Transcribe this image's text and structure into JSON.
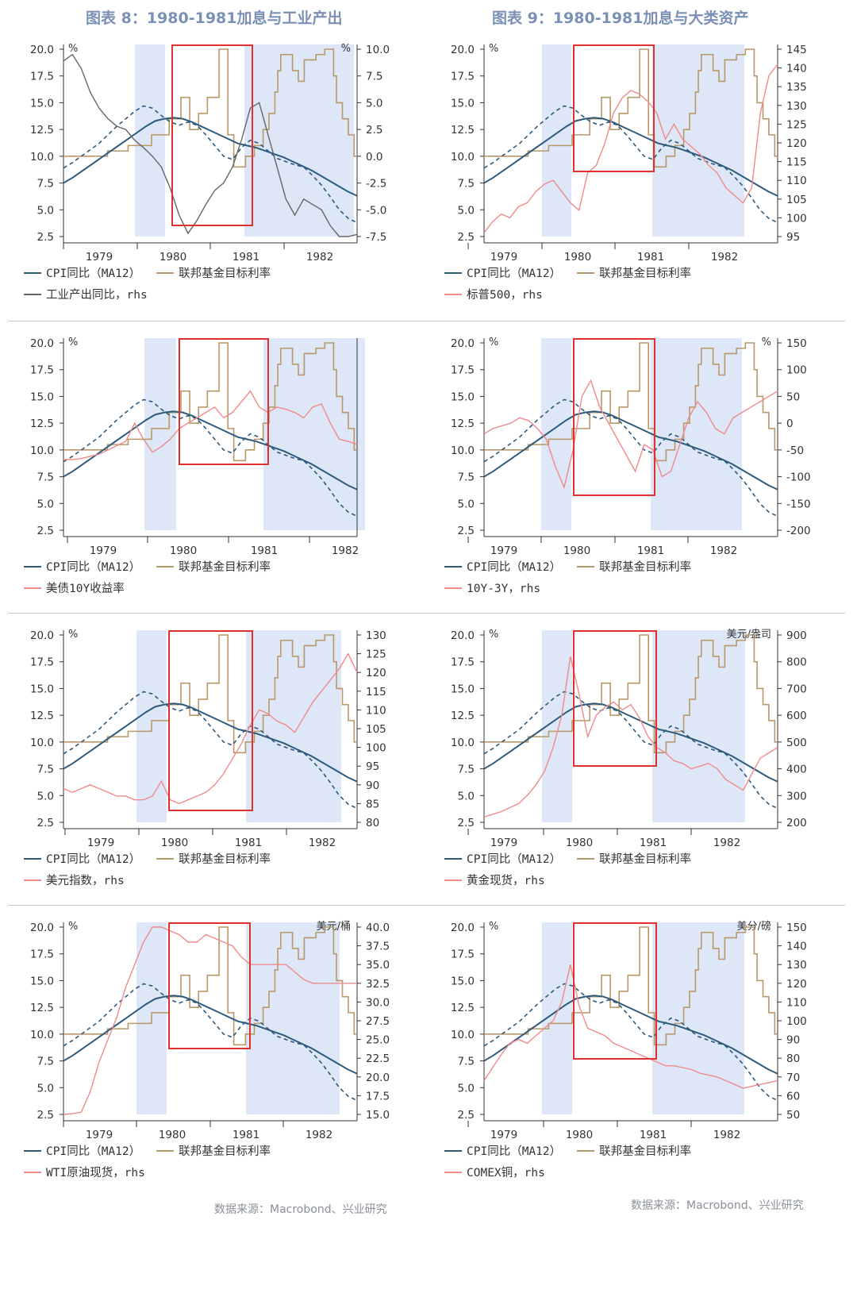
{
  "figures": {
    "left_title": "图表 8：1980-1981加息与工业产出",
    "right_title": "图表 9：1980-1981加息与大类资产",
    "source_left": "数据来源：Macrobond、兴业研究",
    "source_right": "数据来源：Macrobond、兴业研究"
  },
  "legend": {
    "cpi": "CPI同比（MA12）",
    "fed": "联邦基金目标利率"
  },
  "colors": {
    "cpi": "#2e5a7c",
    "fed": "#b89868",
    "rhs_gray": "#666666",
    "rhs_red": "#f08a8a",
    "shade": "#dde7f7",
    "box": "#e03030"
  },
  "chart_data": [
    {
      "id": "p1",
      "type": "line",
      "title": "图表 8：1980-1981加息与工业产出",
      "lhs_unit": "%",
      "rhs_unit": "%",
      "lhs_ticks": [
        "20.0",
        "17.5",
        "15.0",
        "12.5",
        "10.0",
        "7.5",
        "5.0",
        "2.5"
      ],
      "rhs_ticks": [
        "10.0",
        "7.5",
        "5.0",
        "2.5",
        "0.0",
        "-2.5",
        "-5.0",
        "-7.5"
      ],
      "x_ticks": [
        "1979",
        "1980",
        "1981",
        "1982"
      ],
      "rhs_series_name": "工业产出同比，rhs",
      "rhs_color": "gray",
      "rhs_values": [
        8.9,
        9.5,
        8.2,
        6.0,
        4.5,
        3.5,
        2.8,
        2.5,
        1.5,
        0.8,
        0.0,
        -1.0,
        -3.0,
        -5.5,
        -7.2,
        -6.0,
        -4.5,
        -3.2,
        -2.5,
        -1.0,
        1.5,
        4.5,
        5.0,
        2.0,
        -1.0,
        -4.0,
        -5.5,
        -4.0,
        -4.5,
        -5.0,
        -6.5,
        -7.5,
        -7.5,
        -7.3
      ]
    },
    {
      "id": "p2",
      "type": "line",
      "title": "图表 9：1980-1981加息与大类资产",
      "lhs_unit": "%",
      "rhs_unit": "",
      "lhs_ticks": [
        "20.0",
        "17.5",
        "15.0",
        "12.5",
        "10.0",
        "7.5",
        "5.0",
        "2.5"
      ],
      "rhs_ticks": [
        "145",
        "140",
        "135",
        "130",
        "125",
        "120",
        "115",
        "110",
        "105",
        "100",
        "95"
      ],
      "x_ticks": [
        "1979",
        "1980",
        "1981",
        "1982"
      ],
      "rhs_series_name": "标普500，rhs",
      "rhs_color": "red",
      "rhs_values": [
        96,
        99,
        101,
        100,
        103,
        104,
        107,
        109,
        110,
        107,
        104,
        102,
        112,
        114,
        120,
        128,
        132,
        134,
        133,
        131,
        128,
        121,
        125,
        121,
        119,
        117,
        114,
        112,
        108,
        106,
        104,
        108,
        128,
        138,
        141
      ]
    },
    {
      "id": "p3",
      "type": "line",
      "lhs_unit": "%",
      "rhs_unit": "",
      "lhs_ticks": [
        "20.0",
        "17.5",
        "15.0",
        "12.5",
        "10.0",
        "7.5",
        "5.0",
        "2.5"
      ],
      "rhs_ticks": [],
      "x_ticks": [
        "1979",
        "1980",
        "1981",
        "1982"
      ],
      "rhs_series_name": "美债10Y收益率",
      "rhs_color": "red",
      "rhs_values": [
        9.1,
        9.1,
        9.2,
        9.4,
        9.6,
        10.0,
        10.4,
        10.8,
        12.5,
        11.0,
        9.8,
        10.3,
        11.0,
        12.0,
        12.5,
        13.0,
        13.5,
        14.0,
        13.0,
        13.5,
        14.5,
        15.5,
        14.0,
        13.5,
        14.0,
        13.8,
        13.5,
        13.0,
        14.0,
        14.3,
        12.5,
        11.0,
        10.8,
        10.5
      ]
    },
    {
      "id": "p4",
      "type": "line",
      "lhs_unit": "%",
      "rhs_unit": "%",
      "lhs_ticks": [
        "20.0",
        "17.5",
        "15.0",
        "12.5",
        "10.0",
        "7.5",
        "5.0",
        "2.5"
      ],
      "rhs_ticks": [
        "150",
        "100",
        "50",
        "0",
        "-50",
        "-100",
        "-150",
        "-200"
      ],
      "x_ticks": [
        "1979",
        "1980",
        "1981",
        "1982"
      ],
      "rhs_series_name": "10Y-3Y，rhs",
      "rhs_color": "red",
      "rhs_values": [
        -20,
        -10,
        -5,
        0,
        10,
        5,
        -10,
        -30,
        -80,
        -120,
        -50,
        50,
        80,
        30,
        0,
        -30,
        -60,
        -90,
        -40,
        -50,
        -100,
        -90,
        -40,
        10,
        40,
        20,
        -10,
        -20,
        10,
        20,
        30,
        40,
        50,
        60
      ]
    },
    {
      "id": "p5",
      "type": "line",
      "lhs_unit": "%",
      "rhs_unit": "",
      "lhs_ticks": [
        "20.0",
        "17.5",
        "15.0",
        "12.5",
        "10.0",
        "7.5",
        "5.0",
        "2.5"
      ],
      "rhs_ticks": [
        "130",
        "125",
        "120",
        "115",
        "110",
        "105",
        "100",
        "95",
        "90",
        "85",
        "80"
      ],
      "x_ticks": [
        "1979",
        "1980",
        "1981",
        "1982"
      ],
      "rhs_series_name": "美元指数，rhs",
      "rhs_color": "red",
      "rhs_values": [
        89,
        88,
        89,
        90,
        89,
        88,
        87,
        87,
        86,
        86,
        87,
        91,
        86,
        85,
        86,
        87,
        88,
        90,
        93,
        97,
        101,
        106,
        110,
        109,
        107,
        106,
        104,
        108,
        112,
        115,
        118,
        121,
        125,
        120
      ]
    },
    {
      "id": "p6",
      "type": "line",
      "lhs_unit": "%",
      "rhs_unit": "美元/盎司",
      "lhs_ticks": [
        "20.0",
        "17.5",
        "15.0",
        "12.5",
        "10.0",
        "7.5",
        "5.0",
        "2.5"
      ],
      "rhs_ticks": [
        "900",
        "800",
        "700",
        "600",
        "500",
        "400",
        "300",
        "200"
      ],
      "x_ticks": [
        "1979",
        "1980",
        "1981",
        "1982"
      ],
      "rhs_series_name": "黄金现货，rhs",
      "rhs_color": "red",
      "rhs_values": [
        220,
        230,
        240,
        255,
        270,
        300,
        340,
        390,
        480,
        600,
        820,
        680,
        520,
        600,
        630,
        650,
        620,
        640,
        590,
        520,
        480,
        460,
        430,
        420,
        400,
        410,
        420,
        400,
        360,
        340,
        320,
        380,
        440,
        460,
        480
      ]
    },
    {
      "id": "p7",
      "type": "line",
      "lhs_unit": "%",
      "rhs_unit": "美元/桶",
      "lhs_ticks": [
        "20.0",
        "17.5",
        "15.0",
        "12.5",
        "10.0",
        "7.5",
        "5.0",
        "2.5"
      ],
      "rhs_ticks": [
        "40.0",
        "37.5",
        "35.0",
        "32.5",
        "30.0",
        "27.5",
        "25.0",
        "22.5",
        "20.0",
        "17.5",
        "15.0"
      ],
      "x_ticks": [
        "1979",
        "1980",
        "1981",
        "1982"
      ],
      "rhs_series_name": "WTI原油现货，rhs",
      "rhs_color": "red",
      "rhs_values": [
        15.0,
        15.1,
        15.3,
        18,
        22,
        25,
        28,
        32,
        35,
        38,
        40,
        40,
        39.5,
        39,
        38,
        38,
        39,
        38.5,
        38,
        37.5,
        36,
        35,
        35,
        35,
        35,
        35,
        34,
        33,
        32.5,
        32.5,
        32.5,
        32.5,
        32.5,
        32.5
      ]
    },
    {
      "id": "p8",
      "type": "line",
      "lhs_unit": "%",
      "rhs_unit": "美分/磅",
      "lhs_ticks": [
        "20.0",
        "17.5",
        "15.0",
        "12.5",
        "10.0",
        "7.5",
        "5.0",
        "2.5"
      ],
      "rhs_ticks": [
        "150",
        "140",
        "130",
        "120",
        "110",
        "100",
        "90",
        "80",
        "70",
        "60",
        "50"
      ],
      "x_ticks": [
        "1979",
        "1980",
        "1981",
        "1982"
      ],
      "rhs_series_name": "COMEX铜，rhs",
      "rhs_color": "red",
      "rhs_values": [
        68,
        75,
        82,
        88,
        90,
        88,
        92,
        96,
        100,
        110,
        130,
        108,
        96,
        94,
        92,
        88,
        86,
        84,
        82,
        80,
        78,
        76,
        76,
        75,
        74,
        72,
        71,
        70,
        68,
        66,
        64,
        65,
        66,
        67,
        68
      ]
    }
  ]
}
